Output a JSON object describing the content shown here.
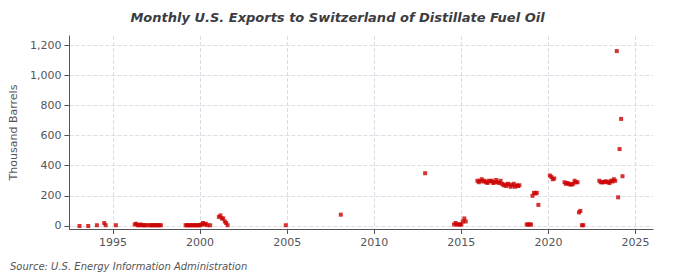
{
  "chart_data": {
    "type": "scatter",
    "title": "Monthly U.S. Exports to Switzerland of Distillate Fuel Oil",
    "ylabel": "Thousand Barrels",
    "source": "Source: U.S. Energy Information Administration",
    "color": "#cc0000",
    "marker": "square",
    "grid": true,
    "xlim": [
      1992.5,
      2026.0
    ],
    "xticks": [
      1995,
      2000,
      2005,
      2010,
      2015,
      2020,
      2025
    ],
    "ylim": [
      -20,
      1260
    ],
    "yticks": [
      0,
      200,
      400,
      600,
      800,
      {
        "value": 1000,
        "label": "1,000"
      },
      {
        "value": 1200,
        "label": "1,200"
      }
    ],
    "x": [
      1993.08,
      1993.58,
      1994.08,
      1994.5,
      1994.58,
      1995.17,
      1996.25,
      1996.33,
      1996.42,
      1996.5,
      1996.58,
      1996.67,
      1996.75,
      1996.83,
      1996.92,
      1997.08,
      1997.17,
      1997.25,
      1997.33,
      1997.42,
      1997.5,
      1997.58,
      1997.67,
      1997.75,
      1999.17,
      1999.25,
      1999.33,
      1999.42,
      1999.5,
      1999.58,
      1999.67,
      1999.75,
      1999.83,
      1999.92,
      2000.0,
      2000.08,
      2000.17,
      2000.25,
      2000.33,
      2000.42,
      2000.58,
      2001.08,
      2001.17,
      2001.25,
      2001.33,
      2001.42,
      2001.5,
      2001.58,
      2004.92,
      2008.08,
      2012.92,
      2014.58,
      2014.67,
      2014.75,
      2014.83,
      2014.92,
      2015.0,
      2015.08,
      2015.17,
      2015.25,
      2015.92,
      2016.0,
      2016.08,
      2016.17,
      2016.25,
      2016.33,
      2016.42,
      2016.5,
      2016.58,
      2016.67,
      2016.75,
      2016.83,
      2016.92,
      2017.0,
      2017.08,
      2017.17,
      2017.25,
      2017.33,
      2017.42,
      2017.5,
      2017.58,
      2017.67,
      2017.75,
      2017.83,
      2017.92,
      2018.0,
      2018.08,
      2018.17,
      2018.25,
      2018.33,
      2018.75,
      2018.83,
      2018.92,
      2019.0,
      2019.08,
      2019.17,
      2019.25,
      2019.33,
      2019.42,
      2020.08,
      2020.17,
      2020.25,
      2020.33,
      2020.92,
      2021.0,
      2021.08,
      2021.17,
      2021.25,
      2021.33,
      2021.42,
      2021.5,
      2021.58,
      2021.67,
      2021.75,
      2021.83,
      2021.92,
      2022.0,
      2022.92,
      2023.0,
      2023.08,
      2023.17,
      2023.25,
      2023.33,
      2023.42,
      2023.5,
      2023.58,
      2023.67,
      2023.75,
      2023.83,
      2023.92,
      2024.0,
      2024.08,
      2024.17,
      2024.25
    ],
    "values": [
      0,
      0,
      5,
      20,
      5,
      5,
      10,
      15,
      5,
      5,
      10,
      5,
      5,
      5,
      5,
      5,
      5,
      5,
      5,
      5,
      5,
      5,
      5,
      5,
      5,
      5,
      5,
      5,
      5,
      5,
      5,
      5,
      5,
      5,
      5,
      10,
      20,
      10,
      15,
      5,
      5,
      60,
      70,
      50,
      50,
      30,
      20,
      5,
      5,
      75,
      350,
      10,
      20,
      10,
      10,
      10,
      10,
      30,
      50,
      30,
      300,
      290,
      300,
      310,
      295,
      300,
      290,
      285,
      300,
      295,
      300,
      285,
      290,
      305,
      290,
      285,
      300,
      280,
      270,
      275,
      265,
      280,
      275,
      260,
      270,
      280,
      260,
      270,
      265,
      270,
      10,
      10,
      10,
      10,
      200,
      220,
      215,
      220,
      140,
      335,
      325,
      310,
      315,
      290,
      280,
      285,
      280,
      275,
      275,
      280,
      300,
      290,
      290,
      90,
      100,
      5,
      5,
      300,
      290,
      290,
      290,
      295,
      295,
      290,
      285,
      300,
      295,
      310,
      300,
      1160,
      190,
      510,
      710,
      330
    ]
  }
}
